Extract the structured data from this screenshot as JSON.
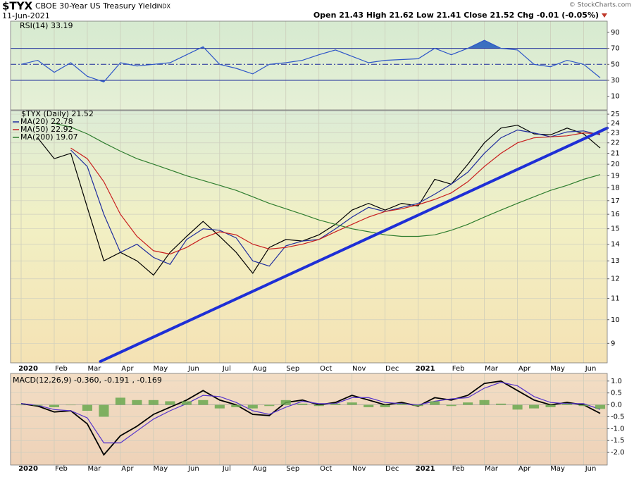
{
  "header": {
    "symbol": "$TYX",
    "name": "CBOE 30-Year US Treasury Yield",
    "exchange": "INDX",
    "date": "11-Jun-2021",
    "quote": "Open 21.43 High 21.62 Low 21.41 Close 21.52 Chg -0.01 (-0.05%)",
    "credit": "© StockCharts.com"
  },
  "chart_data": [
    {
      "type": "line",
      "series": [
        {
          "name": "RSI(14) 33.19",
          "color": "#2d55c8",
          "values": [
            50,
            55,
            40,
            52,
            35,
            28,
            52,
            48,
            50,
            52,
            62,
            72,
            50,
            45,
            38,
            50,
            52,
            55,
            62,
            68,
            60,
            52,
            55,
            56,
            57,
            70,
            62,
            70,
            80,
            70,
            68,
            50,
            47,
            55,
            50,
            33.19
          ]
        }
      ],
      "ylim": [
        -7,
        104
      ],
      "yticks": [
        90,
        70,
        50,
        30,
        10
      ],
      "levels": [
        70,
        50,
        30
      ],
      "dashed_level": 50,
      "fill_color": "#3a6fc0"
    },
    {
      "type": "line",
      "log": true,
      "categories": [
        "2020",
        null,
        "Feb",
        null,
        "Mar",
        null,
        "Apr",
        null,
        "May",
        null,
        "Jun",
        null,
        "Jul",
        null,
        "Aug",
        null,
        "Sep",
        null,
        "Oct",
        null,
        "Nov",
        null,
        "Dec",
        null,
        "2021",
        null,
        "Feb",
        null,
        "Mar",
        null,
        "Apr",
        null,
        "May",
        null,
        "Jun",
        null
      ],
      "series": [
        {
          "name": "$TYX (Daily) 21.52",
          "color": "#000000",
          "values": [
            null,
            22.5,
            20.5,
            21.0,
            16.5,
            13.0,
            13.5,
            13.0,
            12.2,
            13.5,
            14.5,
            15.5,
            14.5,
            13.5,
            12.3,
            13.8,
            14.3,
            14.2,
            14.6,
            15.3,
            16.3,
            16.8,
            16.3,
            16.8,
            16.6,
            18.7,
            18.3,
            20.0,
            22.0,
            23.5,
            23.8,
            22.9,
            22.8,
            23.5,
            22.9,
            21.5
          ]
        },
        {
          "name": "MA(20) 22.78",
          "color": "#1f2d9e",
          "values": [
            null,
            null,
            null,
            21.3,
            19.8,
            16.0,
            13.5,
            14.0,
            13.2,
            12.8,
            14.3,
            15.0,
            14.9,
            14.4,
            13.0,
            12.7,
            13.9,
            14.2,
            14.3,
            15.0,
            15.8,
            16.5,
            16.2,
            16.5,
            16.8,
            17.5,
            18.3,
            19.3,
            21.0,
            22.5,
            23.3,
            23.0,
            22.6,
            23.1,
            23.2,
            22.8
          ]
        },
        {
          "name": "MA(50) 22.92",
          "color": "#c81e1e",
          "values": [
            null,
            null,
            null,
            21.5,
            20.5,
            18.5,
            16.0,
            14.5,
            13.6,
            13.4,
            13.8,
            14.4,
            14.8,
            14.6,
            14.0,
            13.7,
            13.8,
            14.0,
            14.3,
            14.8,
            15.3,
            15.8,
            16.2,
            16.4,
            16.7,
            17.1,
            17.6,
            18.5,
            19.8,
            21.0,
            22.0,
            22.5,
            22.6,
            22.7,
            23.0,
            22.9
          ]
        },
        {
          "name": "MA(200) 19.07",
          "color": "#2e7d2e",
          "values": [
            null,
            null,
            24.0,
            23.6,
            22.9,
            22.0,
            21.2,
            20.5,
            20.0,
            19.5,
            19.0,
            18.6,
            18.2,
            17.8,
            17.3,
            16.8,
            16.4,
            16.0,
            15.6,
            15.3,
            15.0,
            14.8,
            14.6,
            14.5,
            14.5,
            14.6,
            14.9,
            15.3,
            15.8,
            16.3,
            16.8,
            17.3,
            17.8,
            18.2,
            18.7,
            19.1
          ]
        }
      ],
      "ylim": [
        8.25,
        25.4
      ],
      "yticks": [
        25,
        24,
        23,
        22,
        21,
        20,
        19,
        18,
        17,
        16,
        15,
        14,
        13,
        12,
        11,
        10,
        9
      ],
      "grid": true,
      "trendline": {
        "values": [
          8.3,
          23.5
        ],
        "color": "#1e2fd6"
      }
    },
    {
      "type": "line",
      "categories": [
        "2020",
        null,
        "Feb",
        null,
        "Mar",
        null,
        "Apr",
        null,
        "May",
        null,
        "Jun",
        null,
        "Jul",
        null,
        "Aug",
        null,
        "Sep",
        null,
        "Oct",
        null,
        "Nov",
        null,
        "Dec",
        null,
        "2021",
        null,
        "Feb",
        null,
        "Mar",
        null,
        "Apr",
        null,
        "May",
        null,
        "Jun",
        null
      ],
      "series": [
        {
          "name": "MACD(12,26,9) -0.360,",
          "color": "#000000",
          "values": [
            0.05,
            -0.05,
            -0.3,
            -0.25,
            -0.8,
            -2.1,
            -1.3,
            -0.9,
            -0.4,
            -0.1,
            0.2,
            0.6,
            0.2,
            0.0,
            -0.4,
            -0.45,
            0.1,
            0.2,
            0.0,
            0.1,
            0.4,
            0.2,
            0.0,
            0.1,
            -0.05,
            0.3,
            0.2,
            0.4,
            0.9,
            1.0,
            0.6,
            0.2,
            0.0,
            0.1,
            0.0,
            -0.36
          ]
        },
        {
          "name": "-0.191",
          "color": "#5533cc",
          "values": [
            0.05,
            -0.02,
            -0.2,
            -0.25,
            -0.55,
            -1.6,
            -1.6,
            -1.1,
            -0.6,
            -0.25,
            0.05,
            0.4,
            0.35,
            0.1,
            -0.25,
            -0.4,
            -0.1,
            0.15,
            0.05,
            0.05,
            0.3,
            0.3,
            0.1,
            0.05,
            0.0,
            0.15,
            0.25,
            0.3,
            0.7,
            0.95,
            0.8,
            0.35,
            0.1,
            0.05,
            0.05,
            -0.191
          ]
        },
        {
          "name": ", -0.169",
          "color": "#6aa84f",
          "type": "bar",
          "values": [
            0,
            -0.03,
            -0.1,
            0,
            -0.25,
            -0.5,
            0.3,
            0.2,
            0.2,
            0.15,
            0.15,
            0.2,
            -0.15,
            -0.1,
            -0.15,
            -0.05,
            0.2,
            0.05,
            -0.05,
            0.05,
            0.1,
            -0.1,
            -0.1,
            0.05,
            -0.05,
            0.15,
            -0.05,
            0.1,
            0.2,
            0.05,
            -0.2,
            -0.15,
            -0.1,
            0.05,
            -0.05,
            -0.169
          ]
        }
      ],
      "ylim": [
        -2.53,
        1.32
      ],
      "yticks": [
        {
          "value": 1,
          "label": "1.0"
        },
        {
          "value": 0.5,
          "label": "0.5"
        },
        {
          "value": 0,
          "label": "0.0"
        },
        {
          "value": -0.5,
          "label": "-0.5"
        },
        {
          "value": -1,
          "label": "-1.0"
        },
        {
          "value": -1.5,
          "label": "-1.5"
        },
        {
          "value": -2,
          "label": "-2.0"
        }
      ],
      "grid": true
    }
  ]
}
